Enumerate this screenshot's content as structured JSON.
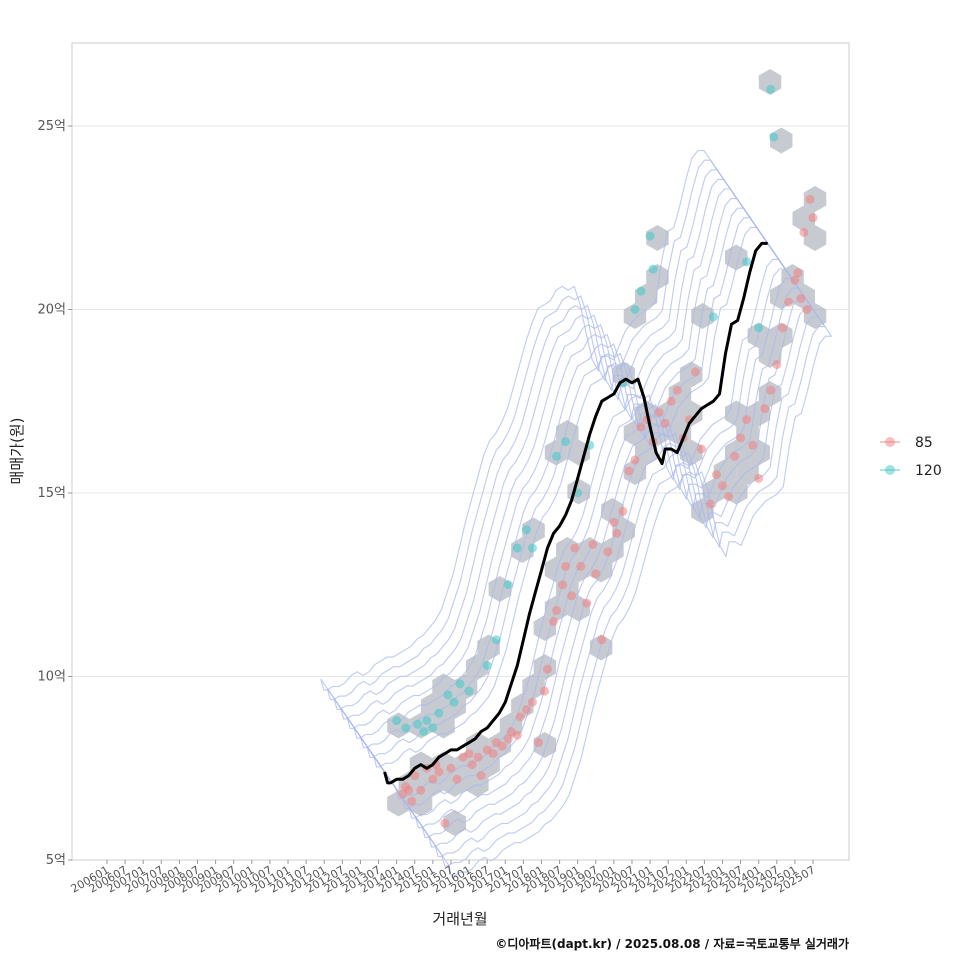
{
  "chart_data": {
    "type": "scatter",
    "xlabel": "거래년월",
    "ylabel": "매매가(원)",
    "caption": "©디아파트(dapt.kr) / 2025.08.08 / 자료=국토교통부 실거래가",
    "x_range": [
      "2006-01",
      "2025-07"
    ],
    "ylim": [
      5,
      27
    ],
    "y_unit": "억",
    "y_ticks": [
      {
        "value": 5,
        "label": "5억"
      },
      {
        "value": 10,
        "label": "10억"
      },
      {
        "value": 15,
        "label": "15억"
      },
      {
        "value": 20,
        "label": "20억"
      },
      {
        "value": 25,
        "label": "25억"
      }
    ],
    "x_ticks": [
      "200601",
      "200607",
      "200701",
      "200707",
      "200801",
      "200807",
      "200901",
      "200907",
      "201001",
      "201007",
      "201101",
      "201107",
      "201201",
      "201207",
      "201301",
      "201307",
      "201401",
      "201407",
      "201501",
      "201507",
      "201601",
      "201607",
      "201701",
      "201707",
      "201801",
      "201807",
      "201901",
      "201907",
      "202001",
      "202007",
      "202101",
      "202107",
      "202201",
      "202207",
      "202301",
      "202307",
      "202401",
      "202407",
      "202501",
      "202507"
    ],
    "grid": true,
    "legend_position": "right",
    "colors": {
      "85": "#f08080",
      "120": "#40c8c8",
      "trend": "#000000",
      "density": "#a8b8ee",
      "hex": "#a9afb8"
    },
    "series": [
      {
        "name": "85",
        "points": [
          [
            "2014-03",
            6.8
          ],
          [
            "2014-04",
            7.0
          ],
          [
            "2014-05",
            6.9
          ],
          [
            "2014-06",
            6.6
          ],
          [
            "2014-07",
            7.3
          ],
          [
            "2014-09",
            6.9
          ],
          [
            "2014-11",
            7.5
          ],
          [
            "2015-01",
            7.2
          ],
          [
            "2015-02",
            7.6
          ],
          [
            "2015-03",
            7.4
          ],
          [
            "2015-05",
            6.0
          ],
          [
            "2015-07",
            7.5
          ],
          [
            "2015-09",
            7.2
          ],
          [
            "2015-11",
            7.8
          ],
          [
            "2016-01",
            7.9
          ],
          [
            "2016-02",
            7.6
          ],
          [
            "2016-04",
            7.8
          ],
          [
            "2016-05",
            7.3
          ],
          [
            "2016-07",
            8.0
          ],
          [
            "2016-09",
            7.9
          ],
          [
            "2016-10",
            8.2
          ],
          [
            "2016-12",
            8.1
          ],
          [
            "2017-02",
            8.3
          ],
          [
            "2017-03",
            8.5
          ],
          [
            "2017-05",
            8.4
          ],
          [
            "2017-06",
            8.9
          ],
          [
            "2017-08",
            9.1
          ],
          [
            "2017-10",
            9.3
          ],
          [
            "2017-12",
            8.2
          ],
          [
            "2018-02",
            9.6
          ],
          [
            "2018-03",
            10.2
          ],
          [
            "2018-05",
            11.5
          ],
          [
            "2018-06",
            11.8
          ],
          [
            "2018-08",
            12.5
          ],
          [
            "2018-09",
            13.0
          ],
          [
            "2018-11",
            12.2
          ],
          [
            "2018-12",
            13.5
          ],
          [
            "2019-02",
            13.0
          ],
          [
            "2019-04",
            12.0
          ],
          [
            "2019-06",
            13.6
          ],
          [
            "2019-07",
            12.8
          ],
          [
            "2019-09",
            11.0
          ],
          [
            "2019-11",
            13.4
          ],
          [
            "2020-01",
            14.2
          ],
          [
            "2020-02",
            13.9
          ],
          [
            "2020-04",
            14.5
          ],
          [
            "2020-06",
            15.6
          ],
          [
            "2020-08",
            15.9
          ],
          [
            "2020-10",
            16.8
          ],
          [
            "2020-12",
            17.0
          ],
          [
            "2021-02",
            16.4
          ],
          [
            "2021-04",
            17.2
          ],
          [
            "2021-06",
            16.9
          ],
          [
            "2021-08",
            17.5
          ],
          [
            "2021-10",
            17.8
          ],
          [
            "2021-12",
            16.5
          ],
          [
            "2022-02",
            17.0
          ],
          [
            "2022-04",
            18.3
          ],
          [
            "2022-06",
            16.2
          ],
          [
            "2022-09",
            14.7
          ],
          [
            "2022-11",
            15.5
          ],
          [
            "2023-01",
            15.2
          ],
          [
            "2023-03",
            14.9
          ],
          [
            "2023-05",
            16.0
          ],
          [
            "2023-07",
            16.5
          ],
          [
            "2023-09",
            17.0
          ],
          [
            "2023-11",
            16.3
          ],
          [
            "2024-01",
            15.4
          ],
          [
            "2024-03",
            17.3
          ],
          [
            "2024-05",
            17.8
          ],
          [
            "2024-07",
            18.5
          ],
          [
            "2024-09",
            19.5
          ],
          [
            "2024-11",
            20.2
          ],
          [
            "2025-01",
            20.8
          ],
          [
            "2025-02",
            21.0
          ],
          [
            "2025-03",
            20.3
          ],
          [
            "2025-04",
            22.1
          ],
          [
            "2025-05",
            20.0
          ],
          [
            "2025-06",
            23.0
          ],
          [
            "2025-07",
            22.5
          ]
        ]
      },
      {
        "name": "120",
        "points": [
          [
            "2014-01",
            8.8
          ],
          [
            "2014-04",
            8.6
          ],
          [
            "2014-08",
            8.7
          ],
          [
            "2014-10",
            8.5
          ],
          [
            "2014-11",
            8.8
          ],
          [
            "2015-01",
            8.6
          ],
          [
            "2015-03",
            9.0
          ],
          [
            "2015-06",
            9.5
          ],
          [
            "2015-08",
            9.3
          ],
          [
            "2015-10",
            9.8
          ],
          [
            "2016-01",
            9.6
          ],
          [
            "2016-07",
            10.3
          ],
          [
            "2016-10",
            11.0
          ],
          [
            "2017-02",
            12.5
          ],
          [
            "2017-05",
            13.5
          ],
          [
            "2017-08",
            14.0
          ],
          [
            "2017-10",
            13.5
          ],
          [
            "2018-06",
            16.0
          ],
          [
            "2018-09",
            16.4
          ],
          [
            "2019-01",
            15.0
          ],
          [
            "2019-05",
            16.3
          ],
          [
            "2020-04",
            18.0
          ],
          [
            "2020-08",
            20.0
          ],
          [
            "2020-10",
            20.5
          ],
          [
            "2021-01",
            22.0
          ],
          [
            "2021-02",
            21.1
          ],
          [
            "2022-10",
            19.8
          ],
          [
            "2023-09",
            21.3
          ],
          [
            "2024-01",
            19.5
          ],
          [
            "2024-06",
            24.7
          ],
          [
            "2024-05",
            26.0
          ]
        ]
      }
    ],
    "trend_line": [
      [
        "2013-09",
        7.4
      ],
      [
        "2013-10",
        7.1
      ],
      [
        "2013-11",
        7.1
      ],
      [
        "2014-01",
        7.2
      ],
      [
        "2014-03",
        7.2
      ],
      [
        "2014-05",
        7.3
      ],
      [
        "2014-07",
        7.5
      ],
      [
        "2014-09",
        7.6
      ],
      [
        "2014-11",
        7.5
      ],
      [
        "2015-01",
        7.6
      ],
      [
        "2015-03",
        7.8
      ],
      [
        "2015-05",
        7.9
      ],
      [
        "2015-07",
        8.0
      ],
      [
        "2015-09",
        8.0
      ],
      [
        "2015-11",
        8.1
      ],
      [
        "2016-01",
        8.2
      ],
      [
        "2016-03",
        8.3
      ],
      [
        "2016-05",
        8.5
      ],
      [
        "2016-07",
        8.6
      ],
      [
        "2016-09",
        8.8
      ],
      [
        "2016-11",
        9.0
      ],
      [
        "2017-01",
        9.3
      ],
      [
        "2017-03",
        9.8
      ],
      [
        "2017-05",
        10.3
      ],
      [
        "2017-07",
        11.0
      ],
      [
        "2017-09",
        11.7
      ],
      [
        "2017-11",
        12.3
      ],
      [
        "2018-01",
        12.9
      ],
      [
        "2018-03",
        13.5
      ],
      [
        "2018-05",
        13.9
      ],
      [
        "2018-07",
        14.1
      ],
      [
        "2018-09",
        14.4
      ],
      [
        "2018-11",
        14.8
      ],
      [
        "2019-01",
        15.4
      ],
      [
        "2019-03",
        16.0
      ],
      [
        "2019-05",
        16.6
      ],
      [
        "2019-07",
        17.1
      ],
      [
        "2019-09",
        17.5
      ],
      [
        "2019-11",
        17.6
      ],
      [
        "2020-01",
        17.7
      ],
      [
        "2020-03",
        18.0
      ],
      [
        "2020-05",
        18.1
      ],
      [
        "2020-07",
        18.0
      ],
      [
        "2020-09",
        18.1
      ],
      [
        "2020-11",
        17.6
      ],
      [
        "2021-01",
        16.8
      ],
      [
        "2021-03",
        16.1
      ],
      [
        "2021-05",
        15.8
      ],
      [
        "2021-06",
        16.2
      ],
      [
        "2021-08",
        16.2
      ],
      [
        "2021-10",
        16.1
      ],
      [
        "2021-12",
        16.5
      ],
      [
        "2022-02",
        16.9
      ],
      [
        "2022-04",
        17.1
      ],
      [
        "2022-06",
        17.3
      ],
      [
        "2022-08",
        17.4
      ],
      [
        "2022-10",
        17.5
      ],
      [
        "2022-12",
        17.7
      ],
      [
        "2023-02",
        18.8
      ],
      [
        "2023-04",
        19.6
      ],
      [
        "2023-06",
        19.7
      ],
      [
        "2023-08",
        20.3
      ],
      [
        "2023-10",
        21.0
      ],
      [
        "2023-12",
        21.6
      ],
      [
        "2024-02",
        21.8
      ],
      [
        "2024-04",
        21.8
      ]
    ],
    "legend": [
      {
        "label": "85",
        "color": "#f08080"
      },
      {
        "label": "120",
        "color": "#40c8c8"
      }
    ]
  }
}
